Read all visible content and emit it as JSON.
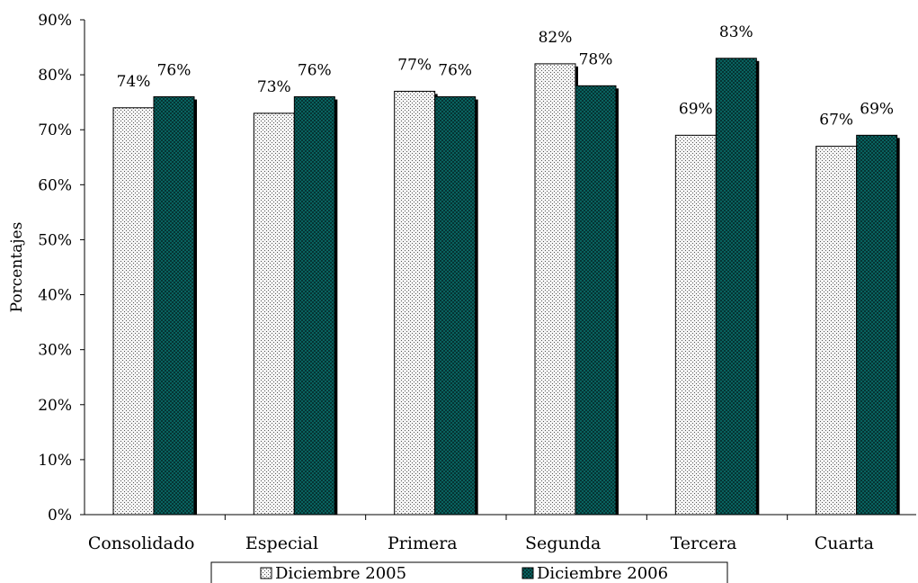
{
  "chart_data": {
    "type": "bar",
    "title": "",
    "xlabel": "",
    "ylabel": "Porcentajes",
    "ylim": [
      0,
      90
    ],
    "yticks": [
      "0%",
      "10%",
      "20%",
      "30%",
      "40%",
      "50%",
      "60%",
      "70%",
      "80%",
      "90%"
    ],
    "grid": false,
    "legend_position": "bottom",
    "categories": [
      "Consolidado",
      "Especial",
      "Primera",
      "Segunda",
      "Tercera",
      "Cuarta"
    ],
    "series": [
      {
        "name": "Diciembre 2005",
        "values": [
          74,
          73,
          77,
          82,
          69,
          67
        ],
        "labels": [
          "74%",
          "73%",
          "77%",
          "82%",
          "69%",
          "67%"
        ],
        "color": "#f2f2f2",
        "pattern": "dotted"
      },
      {
        "name": "Diciembre 2006",
        "values": [
          76,
          76,
          76,
          78,
          83,
          69
        ],
        "labels": [
          "76%",
          "76%",
          "76%",
          "78%",
          "83%",
          "69%"
        ],
        "color": "#0b6e6b",
        "pattern": "crosshatch"
      }
    ]
  }
}
